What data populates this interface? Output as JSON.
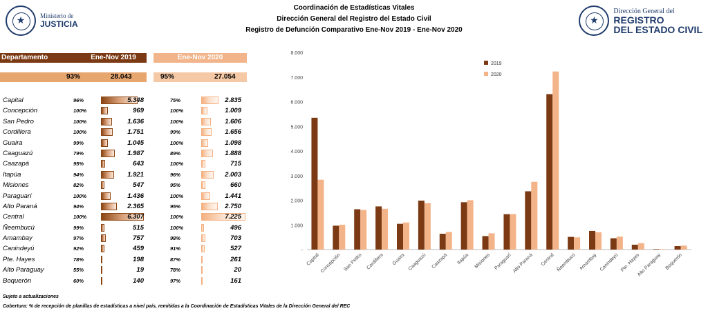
{
  "header": {
    "line1": "Coordinación de Estadísticas Vitales",
    "line2": "Dirección General del Registro del Estado Civil",
    "line3": "Registro de Defunción Comparativo Ene-Nov 2019 - Ene-Nov 2020"
  },
  "logo_left": {
    "line1": "Ministerio de",
    "line2": "JUSTICIA"
  },
  "logo_right": {
    "line1": "Dirección General del",
    "line2": "REGISTRO",
    "line3": "DEL ESTADO CIVIL"
  },
  "table": {
    "col_dep": "Departamento",
    "col_2019": "Ene-Nov 2019",
    "col_2020": "Ene-Nov 2020",
    "total_pct_2019": "93%",
    "total_2019": "28.043",
    "total_pct_2020": "95%",
    "total_2020": "27.054",
    "rows": [
      {
        "dep": "Capital",
        "p19": "96%",
        "v19": "5.348",
        "p20": "75%",
        "v20": "2.835"
      },
      {
        "dep": "Concepción",
        "p19": "100%",
        "v19": "969",
        "p20": "100%",
        "v20": "1.009"
      },
      {
        "dep": "San Pedro",
        "p19": "100%",
        "v19": "1.636",
        "p20": "100%",
        "v20": "1.606"
      },
      {
        "dep": "Cordillera",
        "p19": "100%",
        "v19": "1.751",
        "p20": "99%",
        "v20": "1.656"
      },
      {
        "dep": "Guaira",
        "p19": "99%",
        "v19": "1.045",
        "p20": "100%",
        "v20": "1.098"
      },
      {
        "dep": "Caaguazú",
        "p19": "79%",
        "v19": "1.987",
        "p20": "89%",
        "v20": "1.888"
      },
      {
        "dep": "Caazapá",
        "p19": "95%",
        "v19": "643",
        "p20": "100%",
        "v20": "715"
      },
      {
        "dep": "Itapúa",
        "p19": "94%",
        "v19": "1.921",
        "p20": "96%",
        "v20": "2.003"
      },
      {
        "dep": "Misiones",
        "p19": "82%",
        "v19": "547",
        "p20": "95%",
        "v20": "660"
      },
      {
        "dep": "Paraguarí",
        "p19": "100%",
        "v19": "1.436",
        "p20": "100%",
        "v20": "1.441"
      },
      {
        "dep": "Alto Paraná",
        "p19": "94%",
        "v19": "2.365",
        "p20": "95%",
        "v20": "2.750"
      },
      {
        "dep": "Central",
        "p19": "100%",
        "v19": "6.307",
        "p20": "100%",
        "v20": "7.225"
      },
      {
        "dep": "Ñeembucú",
        "p19": "99%",
        "v19": "515",
        "p20": "100%",
        "v20": "496"
      },
      {
        "dep": "Amambay",
        "p19": "97%",
        "v19": "757",
        "p20": "98%",
        "v20": "703"
      },
      {
        "dep": "Canindeyú",
        "p19": "92%",
        "v19": "459",
        "p20": "91%",
        "v20": "527"
      },
      {
        "dep": "Pte. Hayes",
        "p19": "78%",
        "v19": "198",
        "p20": "87%",
        "v20": "261"
      },
      {
        "dep": "Alto Paraguay",
        "p19": "55%",
        "v19": "19",
        "p20": "78%",
        "v20": "20"
      },
      {
        "dep": "Boquerón",
        "p19": "60%",
        "v19": "140",
        "p20": "97%",
        "v20": "161"
      }
    ]
  },
  "notes": {
    "line1": "Sujeto a actualizaciones",
    "line2": "Cobertura:  % de recepción de planillas de estadísticas a nivel país, remitidas a la Coordinación de Estadísticas Vitales de la Dirección General del REC"
  },
  "chart_data": {
    "type": "bar",
    "categories": [
      "Capital",
      "Concepción",
      "San Pedro",
      "Cordillera",
      "Guaira",
      "Caaguazú",
      "Caazapá",
      "Itapúa",
      "Misiones",
      "Paraguarí",
      "Alto Paraná",
      "Central",
      "Ñeembucú",
      "Amambay",
      "Canindeyú",
      "Pte. Hayes",
      "Alto Paraguay",
      "Boquerón"
    ],
    "series": [
      {
        "name": "2019",
        "color": "#7b3a14",
        "values": [
          5348,
          969,
          1636,
          1751,
          1045,
          1987,
          643,
          1921,
          547,
          1436,
          2365,
          6307,
          515,
          757,
          459,
          198,
          19,
          140
        ]
      },
      {
        "name": "2020",
        "color": "#f4b48a",
        "values": [
          2835,
          1009,
          1606,
          1656,
          1098,
          1888,
          715,
          2003,
          660,
          1441,
          2750,
          7225,
          496,
          703,
          527,
          261,
          20,
          161
        ]
      }
    ],
    "ylim": [
      0,
      8000
    ],
    "yticks": [
      "-",
      "1.000",
      "2.000",
      "3.000",
      "4.000",
      "5.000",
      "6.000",
      "7.000",
      "8.000"
    ],
    "legend_placement": "top-center",
    "grid": false
  }
}
